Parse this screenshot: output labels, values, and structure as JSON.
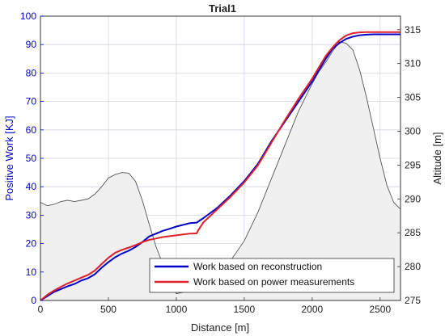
{
  "chart_data": {
    "type": "line",
    "title": "Trial1",
    "xlabel": "Distance [m]",
    "ylabel_left": "Positive Work [KJ]",
    "ylabel_right": "Altitude [m]",
    "xlim": [
      0,
      2650
    ],
    "ylim_left": [
      0,
      100
    ],
    "ylim_right": [
      275,
      317
    ],
    "xticks": [
      0,
      500,
      1000,
      1500,
      2000,
      2500
    ],
    "yticks_left": [
      0,
      10,
      20,
      30,
      40,
      50,
      60,
      70,
      80,
      90,
      100
    ],
    "yticks_right": [
      275,
      280,
      285,
      290,
      295,
      300,
      305,
      310,
      315
    ],
    "grid": true,
    "legend_position": "bottom-right",
    "colors": {
      "reconstruction": "#0000c8",
      "power": "#e0202a",
      "altitude_fill": "#f0f0f0",
      "altitude_line": "#555555",
      "left_axis": "#0000cc"
    },
    "altitude": {
      "name": "",
      "x": [
        0,
        50,
        100,
        150,
        200,
        250,
        300,
        350,
        400,
        450,
        500,
        550,
        600,
        650,
        700,
        750,
        800,
        850,
        900,
        950,
        1000,
        1050,
        1100,
        1150,
        1200,
        1300,
        1400,
        1500,
        1600,
        1700,
        1800,
        1900,
        2000,
        2050,
        2100,
        2150,
        2200,
        2250,
        2300,
        2350,
        2400,
        2450,
        2500,
        2550,
        2600,
        2650
      ],
      "values": [
        289.5,
        289.0,
        289.2,
        289.6,
        289.8,
        289.6,
        289.8,
        290.0,
        290.7,
        291.8,
        293.1,
        293.6,
        293.9,
        293.8,
        292.6,
        289.8,
        286.3,
        283.0,
        280.4,
        278.0,
        276.0,
        276.2,
        277.1,
        277.8,
        278.0,
        279.2,
        280.9,
        283.8,
        288.0,
        293.0,
        298.0,
        303.0,
        307.0,
        308.8,
        310.2,
        311.8,
        313.2,
        313.0,
        312.0,
        309.0,
        305.0,
        300.5,
        296.0,
        292.0,
        289.5,
        288.5
      ]
    },
    "series": [
      {
        "name": "Work based on reconstruction",
        "x": [
          0,
          50,
          100,
          150,
          200,
          250,
          300,
          350,
          400,
          450,
          500,
          550,
          600,
          650,
          700,
          750,
          800,
          850,
          900,
          950,
          1000,
          1050,
          1100,
          1150,
          1200,
          1300,
          1400,
          1500,
          1600,
          1700,
          1800,
          1900,
          2000,
          2050,
          2100,
          2150,
          2200,
          2250,
          2300,
          2350,
          2400,
          2450,
          2500,
          2550,
          2600,
          2650
        ],
        "values": [
          0,
          1.5,
          3.0,
          4.0,
          5.0,
          5.8,
          7.0,
          7.8,
          9.2,
          11.5,
          13.5,
          15.2,
          16.5,
          17.5,
          18.8,
          20.5,
          22.5,
          23.5,
          24.5,
          25.2,
          26.0,
          26.6,
          27.2,
          27.4,
          29.0,
          32.5,
          37.0,
          42.0,
          48.0,
          56.0,
          63.0,
          70.0,
          77.0,
          81.0,
          85.0,
          88.5,
          90.5,
          92.0,
          92.8,
          93.3,
          93.5,
          93.6,
          93.6,
          93.6,
          93.6,
          93.6
        ]
      },
      {
        "name": "Work based on power measurements",
        "x": [
          0,
          50,
          100,
          150,
          200,
          250,
          300,
          350,
          400,
          450,
          500,
          550,
          600,
          650,
          700,
          750,
          800,
          850,
          900,
          950,
          1000,
          1050,
          1100,
          1150,
          1160,
          1200,
          1300,
          1400,
          1500,
          1600,
          1700,
          1800,
          1900,
          2000,
          2050,
          2100,
          2150,
          2200,
          2250,
          2300,
          2350,
          2400,
          2450,
          2500,
          2550,
          2600,
          2650
        ],
        "values": [
          0,
          2.0,
          3.5,
          4.8,
          6.0,
          7.0,
          8.0,
          9.0,
          10.5,
          12.8,
          15.0,
          16.8,
          17.8,
          18.6,
          19.5,
          20.5,
          21.3,
          21.8,
          22.3,
          22.6,
          22.9,
          23.2,
          23.5,
          23.6,
          24.6,
          27.5,
          32.0,
          36.5,
          41.5,
          47.5,
          55.5,
          63.5,
          71.0,
          78.0,
          82.0,
          86.0,
          89.0,
          91.5,
          93.2,
          94.0,
          94.3,
          94.4,
          94.4,
          94.4,
          94.4,
          94.4,
          94.4
        ]
      }
    ]
  }
}
